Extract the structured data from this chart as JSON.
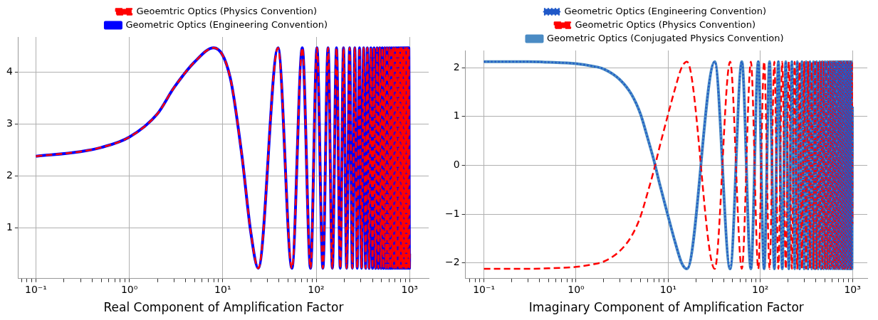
{
  "chart_data": [
    {
      "type": "line",
      "xlabel": "Real Component of Amplification Factor",
      "log": "x",
      "grid": true,
      "legend": "top",
      "marker": "none",
      "xlim": [
        0.065,
        1600
      ],
      "ylim": [
        0.02,
        4.68
      ],
      "xticks": [
        {
          "value": 0.07,
          "label": null
        },
        {
          "value": 0.08,
          "label": null
        },
        {
          "value": 0.09,
          "label": null
        },
        {
          "value": 0.1,
          "label": "10⁻¹"
        },
        {
          "value": 0.2,
          "label": null
        },
        {
          "value": 0.3,
          "label": null
        },
        {
          "value": 0.4,
          "label": null
        },
        {
          "value": 0.5,
          "label": null
        },
        {
          "value": 0.6,
          "label": null
        },
        {
          "value": 0.7,
          "label": null
        },
        {
          "value": 0.8,
          "label": null
        },
        {
          "value": 0.9,
          "label": null
        },
        {
          "value": 1,
          "label": "10⁰"
        },
        {
          "value": 2,
          "label": null
        },
        {
          "value": 3,
          "label": null
        },
        {
          "value": 4,
          "label": null
        },
        {
          "value": 5,
          "label": null
        },
        {
          "value": 6,
          "label": null
        },
        {
          "value": 7,
          "label": null
        },
        {
          "value": 8,
          "label": null
        },
        {
          "value": 9,
          "label": null
        },
        {
          "value": 10,
          "label": "10¹"
        },
        {
          "value": 20,
          "label": null
        },
        {
          "value": 30,
          "label": null
        },
        {
          "value": 40,
          "label": null
        },
        {
          "value": 50,
          "label": null
        },
        {
          "value": 60,
          "label": null
        },
        {
          "value": 70,
          "label": null
        },
        {
          "value": 80,
          "label": null
        },
        {
          "value": 90,
          "label": null
        },
        {
          "value": 100,
          "label": "10²"
        },
        {
          "value": 200,
          "label": null
        },
        {
          "value": 300,
          "label": null
        },
        {
          "value": 400,
          "label": null
        },
        {
          "value": 500,
          "label": null
        },
        {
          "value": 600,
          "label": null
        },
        {
          "value": 700,
          "label": null
        },
        {
          "value": 800,
          "label": null
        },
        {
          "value": 900,
          "label": null
        },
        {
          "value": 1000,
          "label": "10³"
        }
      ],
      "yticks": [
        1,
        2,
        3,
        4
      ],
      "x": [
        0.1,
        0.3,
        0.5,
        1,
        2,
        3,
        5,
        8,
        12,
        16,
        20,
        24,
        39,
        55,
        71,
        87,
        102,
        118,
        134,
        149,
        165,
        181,
        196,
        212,
        228,
        244,
        259,
        275,
        291,
        306,
        322,
        338,
        353,
        369,
        385,
        401,
        416,
        432,
        448,
        463,
        479,
        495,
        510,
        526,
        542,
        558,
        573,
        589,
        605,
        620,
        636,
        652,
        667,
        683,
        699,
        715,
        730,
        746,
        762,
        777,
        793,
        809,
        824,
        840,
        856,
        872,
        887,
        903,
        919,
        934,
        950,
        966,
        981,
        997,
        1000
      ],
      "series": [
        {
          "name": "Geometric Optics (Engineering Convention)",
          "color": "#0000ff",
          "line_style": "solid",
          "values": [
            2.38,
            2.47,
            2.55,
            2.75,
            3.2,
            3.7,
            4.2,
            4.47,
            3.9,
            2.4,
            0.9,
            0.22,
            4.47,
            0.22,
            4.47,
            0.22,
            4.47,
            0.22,
            4.47,
            0.22,
            4.47,
            0.22,
            4.47,
            0.22,
            4.47,
            0.22,
            4.47,
            0.22,
            4.47,
            0.22,
            4.47,
            0.22,
            4.47,
            0.22,
            4.47,
            0.22,
            4.47,
            0.22,
            4.47,
            0.22,
            4.47,
            0.22,
            4.47,
            0.22,
            4.47,
            0.22,
            4.47,
            0.22,
            4.47,
            0.22,
            4.47,
            0.22,
            4.47,
            0.22,
            4.47,
            0.22,
            4.47,
            0.22,
            4.47,
            0.22,
            4.47,
            0.22,
            4.47,
            0.22,
            4.47,
            0.22,
            4.47,
            0.22,
            4.47,
            0.22,
            4.47,
            0.22,
            4.47,
            0.22,
            0.5
          ]
        },
        {
          "name": "Geoemtric Optics (Physics Convention)",
          "color": "#ff0000",
          "line_style": "dashed",
          "values": [
            2.38,
            2.47,
            2.55,
            2.75,
            3.2,
            3.7,
            4.2,
            4.47,
            3.9,
            2.4,
            0.9,
            0.22,
            4.47,
            0.22,
            4.47,
            0.22,
            4.47,
            0.22,
            4.47,
            0.22,
            4.47,
            0.22,
            4.47,
            0.22,
            4.47,
            0.22,
            4.47,
            0.22,
            4.47,
            0.22,
            4.47,
            0.22,
            4.47,
            0.22,
            4.47,
            0.22,
            4.47,
            0.22,
            4.47,
            0.22,
            4.47,
            0.22,
            4.47,
            0.22,
            4.47,
            0.22,
            4.47,
            0.22,
            4.47,
            0.22,
            4.47,
            0.22,
            4.47,
            0.22,
            4.47,
            0.22,
            4.47,
            0.22,
            4.47,
            0.22,
            4.47,
            0.22,
            4.47,
            0.22,
            4.47,
            0.22,
            4.47,
            0.22,
            4.47,
            0.22,
            4.47,
            0.22,
            4.47,
            0.22,
            0.5
          ]
        }
      ]
    },
    {
      "type": "line",
      "xlabel": "Imaginary Component of Amplification Factor",
      "log": "x",
      "grid": true,
      "legend": "top",
      "marker": "none",
      "xlim": [
        0.063,
        1450
      ],
      "ylim": [
        -2.32,
        2.35
      ],
      "xticks": [
        {
          "value": 0.07,
          "label": null
        },
        {
          "value": 0.08,
          "label": null
        },
        {
          "value": 0.09,
          "label": null
        },
        {
          "value": 0.1,
          "label": "10⁻¹"
        },
        {
          "value": 0.2,
          "label": null
        },
        {
          "value": 0.3,
          "label": null
        },
        {
          "value": 0.4,
          "label": null
        },
        {
          "value": 0.5,
          "label": null
        },
        {
          "value": 0.6,
          "label": null
        },
        {
          "value": 0.7,
          "label": null
        },
        {
          "value": 0.8,
          "label": null
        },
        {
          "value": 0.9,
          "label": null
        },
        {
          "value": 1,
          "label": "10⁰"
        },
        {
          "value": 2,
          "label": null
        },
        {
          "value": 3,
          "label": null
        },
        {
          "value": 4,
          "label": null
        },
        {
          "value": 5,
          "label": null
        },
        {
          "value": 6,
          "label": null
        },
        {
          "value": 7,
          "label": null
        },
        {
          "value": 8,
          "label": null
        },
        {
          "value": 9,
          "label": null
        },
        {
          "value": 10,
          "label": "10¹"
        },
        {
          "value": 20,
          "label": null
        },
        {
          "value": 30,
          "label": null
        },
        {
          "value": 40,
          "label": null
        },
        {
          "value": 50,
          "label": null
        },
        {
          "value": 60,
          "label": null
        },
        {
          "value": 70,
          "label": null
        },
        {
          "value": 80,
          "label": null
        },
        {
          "value": 90,
          "label": null
        },
        {
          "value": 100,
          "label": "10²"
        },
        {
          "value": 200,
          "label": null
        },
        {
          "value": 300,
          "label": null
        },
        {
          "value": 400,
          "label": null
        },
        {
          "value": 500,
          "label": null
        },
        {
          "value": 600,
          "label": null
        },
        {
          "value": 700,
          "label": null
        },
        {
          "value": 800,
          "label": null
        },
        {
          "value": 900,
          "label": null
        },
        {
          "value": 1000,
          "label": "10³"
        }
      ],
      "yticks": [
        {
          "value": -2,
          "label": "−2"
        },
        {
          "value": -1,
          "label": "−1"
        },
        0,
        1,
        2
      ],
      "x": [
        0.1,
        0.3,
        0.5,
        1,
        1.5,
        2,
        3,
        4,
        5,
        6,
        7,
        8,
        10,
        12,
        14,
        16,
        32,
        47,
        63,
        79,
        95,
        110,
        126,
        142,
        157,
        173,
        189,
        204,
        220,
        236,
        252,
        267,
        283,
        299,
        314,
        330,
        346,
        361,
        377,
        393,
        409,
        424,
        440,
        456,
        471,
        487,
        503,
        518,
        534,
        550,
        566,
        581,
        597,
        613,
        628,
        644,
        660,
        675,
        691,
        707,
        723,
        738,
        754,
        770,
        785,
        801,
        817,
        832,
        848,
        864,
        880,
        895,
        911,
        927,
        942,
        958,
        974,
        989,
        1000
      ],
      "series": [
        {
          "name": "Geometric Optics (Engineering Convention)",
          "color": "#1f58c8",
          "line_style": "dotted",
          "values": [
            2.12,
            2.12,
            2.11,
            2.08,
            2.03,
            1.97,
            1.75,
            1.45,
            1.05,
            0.55,
            0.1,
            -0.35,
            -1.05,
            -1.6,
            -2.0,
            -2.12,
            2.12,
            -2.12,
            2.12,
            -2.12,
            2.12,
            -2.12,
            2.12,
            -2.12,
            2.12,
            -2.12,
            2.12,
            -2.12,
            2.12,
            -2.12,
            2.12,
            -2.12,
            2.12,
            -2.12,
            2.12,
            -2.12,
            2.12,
            -2.12,
            2.12,
            -2.12,
            2.12,
            -2.12,
            2.12,
            -2.12,
            2.12,
            -2.12,
            2.12,
            -2.12,
            2.12,
            -2.12,
            2.12,
            -2.12,
            2.12,
            -2.12,
            2.12,
            -2.12,
            2.12,
            -2.12,
            2.12,
            -2.12,
            2.12,
            -2.12,
            2.12,
            -2.12,
            2.12,
            -2.12,
            2.12,
            -2.12,
            2.12,
            -2.12,
            2.12,
            -2.12,
            2.12,
            -2.12,
            2.12,
            -2.12,
            2.12,
            -2.12,
            1.2
          ]
        },
        {
          "name": "Geometric Optics (Physics Convention)",
          "color": "#ff0000",
          "line_style": "dashed",
          "values": [
            -2.12,
            -2.12,
            -2.11,
            -2.08,
            -2.03,
            -1.97,
            -1.75,
            -1.45,
            -1.05,
            -0.55,
            -0.1,
            0.35,
            1.05,
            1.6,
            2.0,
            2.12,
            -2.12,
            2.12,
            -2.12,
            2.12,
            -2.12,
            2.12,
            -2.12,
            2.12,
            -2.12,
            2.12,
            -2.12,
            2.12,
            -2.12,
            2.12,
            -2.12,
            2.12,
            -2.12,
            2.12,
            -2.12,
            2.12,
            -2.12,
            2.12,
            -2.12,
            2.12,
            -2.12,
            2.12,
            -2.12,
            2.12,
            -2.12,
            2.12,
            -2.12,
            2.12,
            -2.12,
            2.12,
            -2.12,
            2.12,
            -2.12,
            2.12,
            -2.12,
            2.12,
            -2.12,
            2.12,
            -2.12,
            2.12,
            -2.12,
            2.12,
            -2.12,
            2.12,
            -2.12,
            2.12,
            -2.12,
            2.12,
            -2.12,
            2.12,
            -2.12,
            2.12,
            -2.12,
            2.12,
            -2.12,
            2.12,
            -2.12,
            2.12,
            -1.2
          ]
        },
        {
          "name": "Geometric Optics (Conjugated Physics Convention)",
          "color": "#4a8bc4",
          "line_style": "solid",
          "values": [
            2.12,
            2.12,
            2.11,
            2.08,
            2.03,
            1.97,
            1.75,
            1.45,
            1.05,
            0.55,
            0.1,
            -0.35,
            -1.05,
            -1.6,
            -2.0,
            -2.12,
            2.12,
            -2.12,
            2.12,
            -2.12,
            2.12,
            -2.12,
            2.12,
            -2.12,
            2.12,
            -2.12,
            2.12,
            -2.12,
            2.12,
            -2.12,
            2.12,
            -2.12,
            2.12,
            -2.12,
            2.12,
            -2.12,
            2.12,
            -2.12,
            2.12,
            -2.12,
            2.12,
            -2.12,
            2.12,
            -2.12,
            2.12,
            -2.12,
            2.12,
            -2.12,
            2.12,
            -2.12,
            2.12,
            -2.12,
            2.12,
            -2.12,
            2.12,
            -2.12,
            2.12,
            -2.12,
            2.12,
            -2.12,
            2.12,
            -2.12,
            2.12,
            -2.12,
            2.12,
            -2.12,
            2.12,
            -2.12,
            2.12,
            -2.12,
            2.12,
            -2.12,
            2.12,
            -2.12,
            2.12,
            -2.12,
            2.12,
            -2.12,
            1.2
          ]
        }
      ]
    }
  ]
}
